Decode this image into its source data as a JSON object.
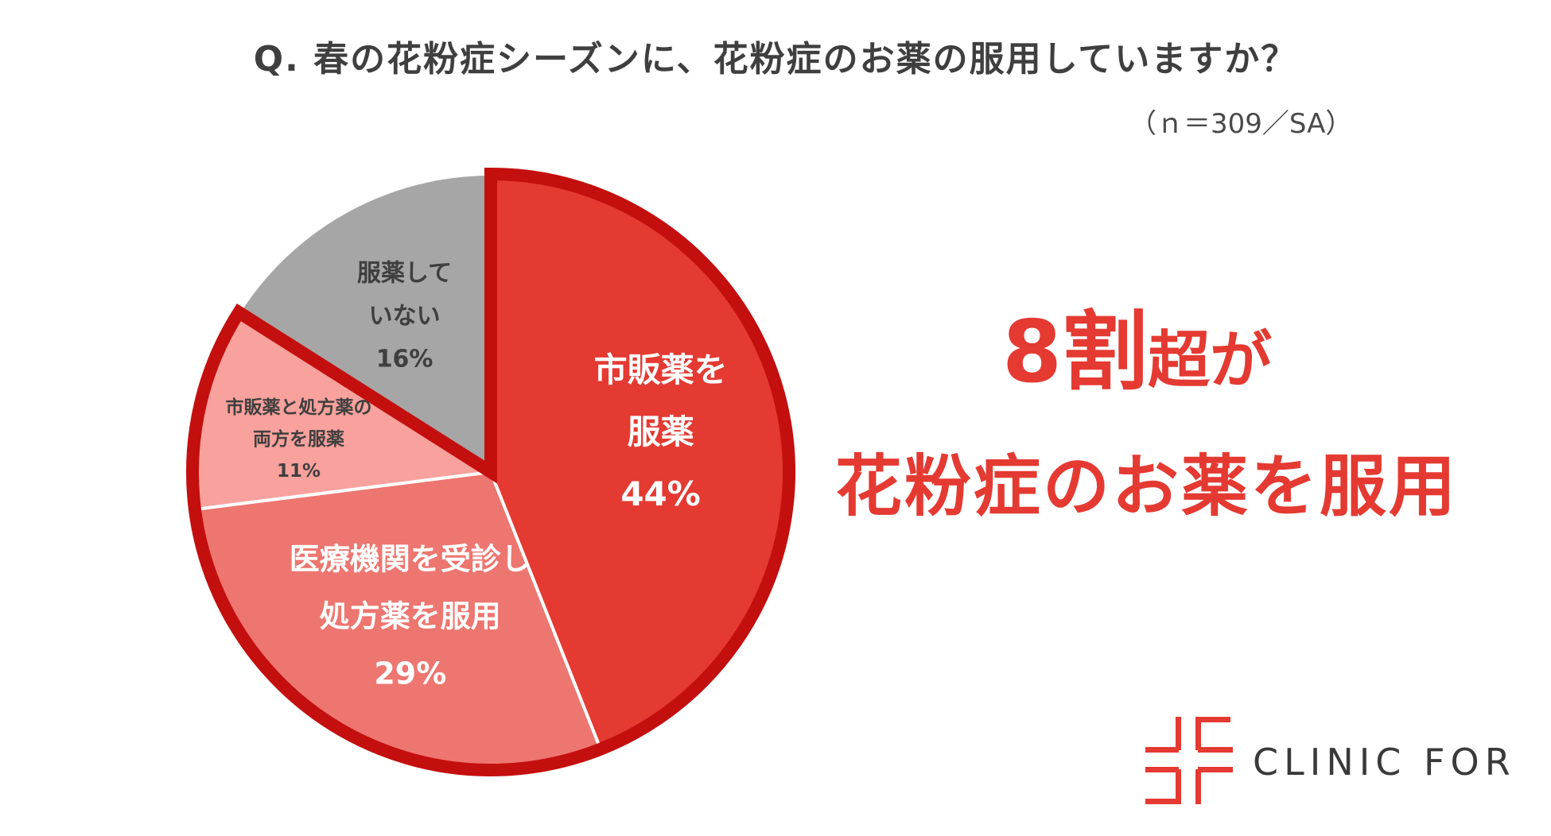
{
  "question": "Q.  春の花粉症シーズンに、花粉症のお薬の服用していますか？",
  "sample_note": "（ｎ＝309／SA）",
  "chart_data": {
    "type": "pie",
    "title": "Q.  春の花粉症シーズンに、花粉症のお薬の服用していますか？",
    "subtitle": "（ｎ＝309／SA）",
    "slices": [
      {
        "label_lines": [
          "市販薬を",
          "服薬"
        ],
        "percent_label": "44%",
        "value": 44,
        "color": "#e43a32",
        "highlighted": true
      },
      {
        "label_lines": [
          "医療機関を受診し",
          "処方薬を服用"
        ],
        "percent_label": "29%",
        "value": 29,
        "color": "#ee7670",
        "highlighted": true
      },
      {
        "label_lines": [
          "市販薬と処方薬の",
          "両方を服薬"
        ],
        "percent_label": "11%",
        "value": 11,
        "color": "#f9a19c",
        "highlighted": true
      },
      {
        "label_lines": [
          "服薬して",
          "いない"
        ],
        "percent_label": "16%",
        "value": 16,
        "color": "#a6a6a6",
        "highlighted": false
      }
    ],
    "highlight_outline_color": "#c40f0f",
    "start": "12 o'clock",
    "direction": "clockwise"
  },
  "headline": {
    "line1_big": "8割",
    "line1_small": "超が",
    "line2": "花粉症のお薬を服用",
    "color": "#e43a32"
  },
  "brand": {
    "name": "CLINIC FOR",
    "color": "#e43a32"
  }
}
